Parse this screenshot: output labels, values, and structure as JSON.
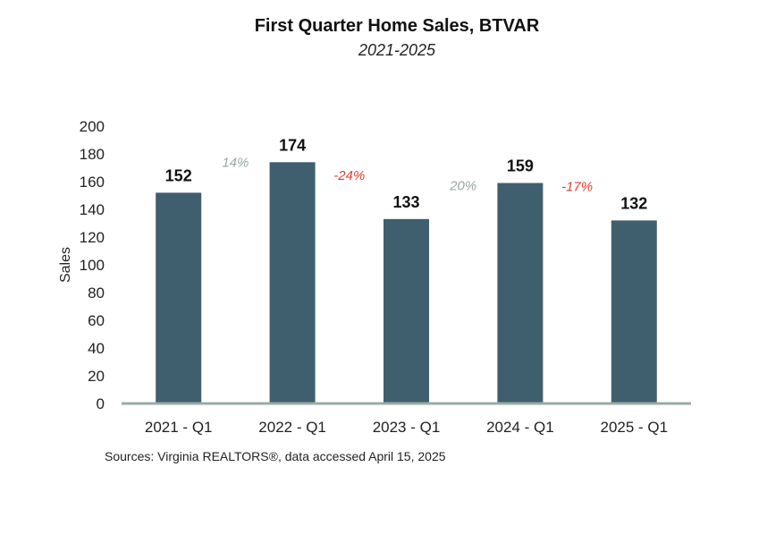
{
  "chart_data": {
    "type": "bar",
    "title": "First Quarter Home Sales, BTVAR",
    "subtitle": "2021-2025",
    "ylabel": "Sales",
    "xlabel": "",
    "categories": [
      "2021 - Q1",
      "2022 - Q1",
      "2023 - Q1",
      "2024 - Q1",
      "2025 - Q1"
    ],
    "values": [
      152,
      174,
      133,
      159,
      132
    ],
    "value_labels": [
      "152",
      "174",
      "133",
      "159",
      "132"
    ],
    "changes": [
      {
        "label": "14%",
        "color": "#9aa8a0"
      },
      {
        "label": "-24%",
        "color": "#e0402f"
      },
      {
        "label": "20%",
        "color": "#9aa8a0"
      },
      {
        "label": "-17%",
        "color": "#e0402f"
      }
    ],
    "ylim": [
      0,
      200
    ],
    "yticks": [
      "0",
      "20",
      "40",
      "60",
      "80",
      "100",
      "120",
      "140",
      "160",
      "180",
      "200"
    ],
    "grid": false,
    "bar_color": "#3f5f6e",
    "axis_color": "#9aaba5",
    "source": "Sources: Virginia REALTORS®, data accessed April 15, 2025"
  }
}
